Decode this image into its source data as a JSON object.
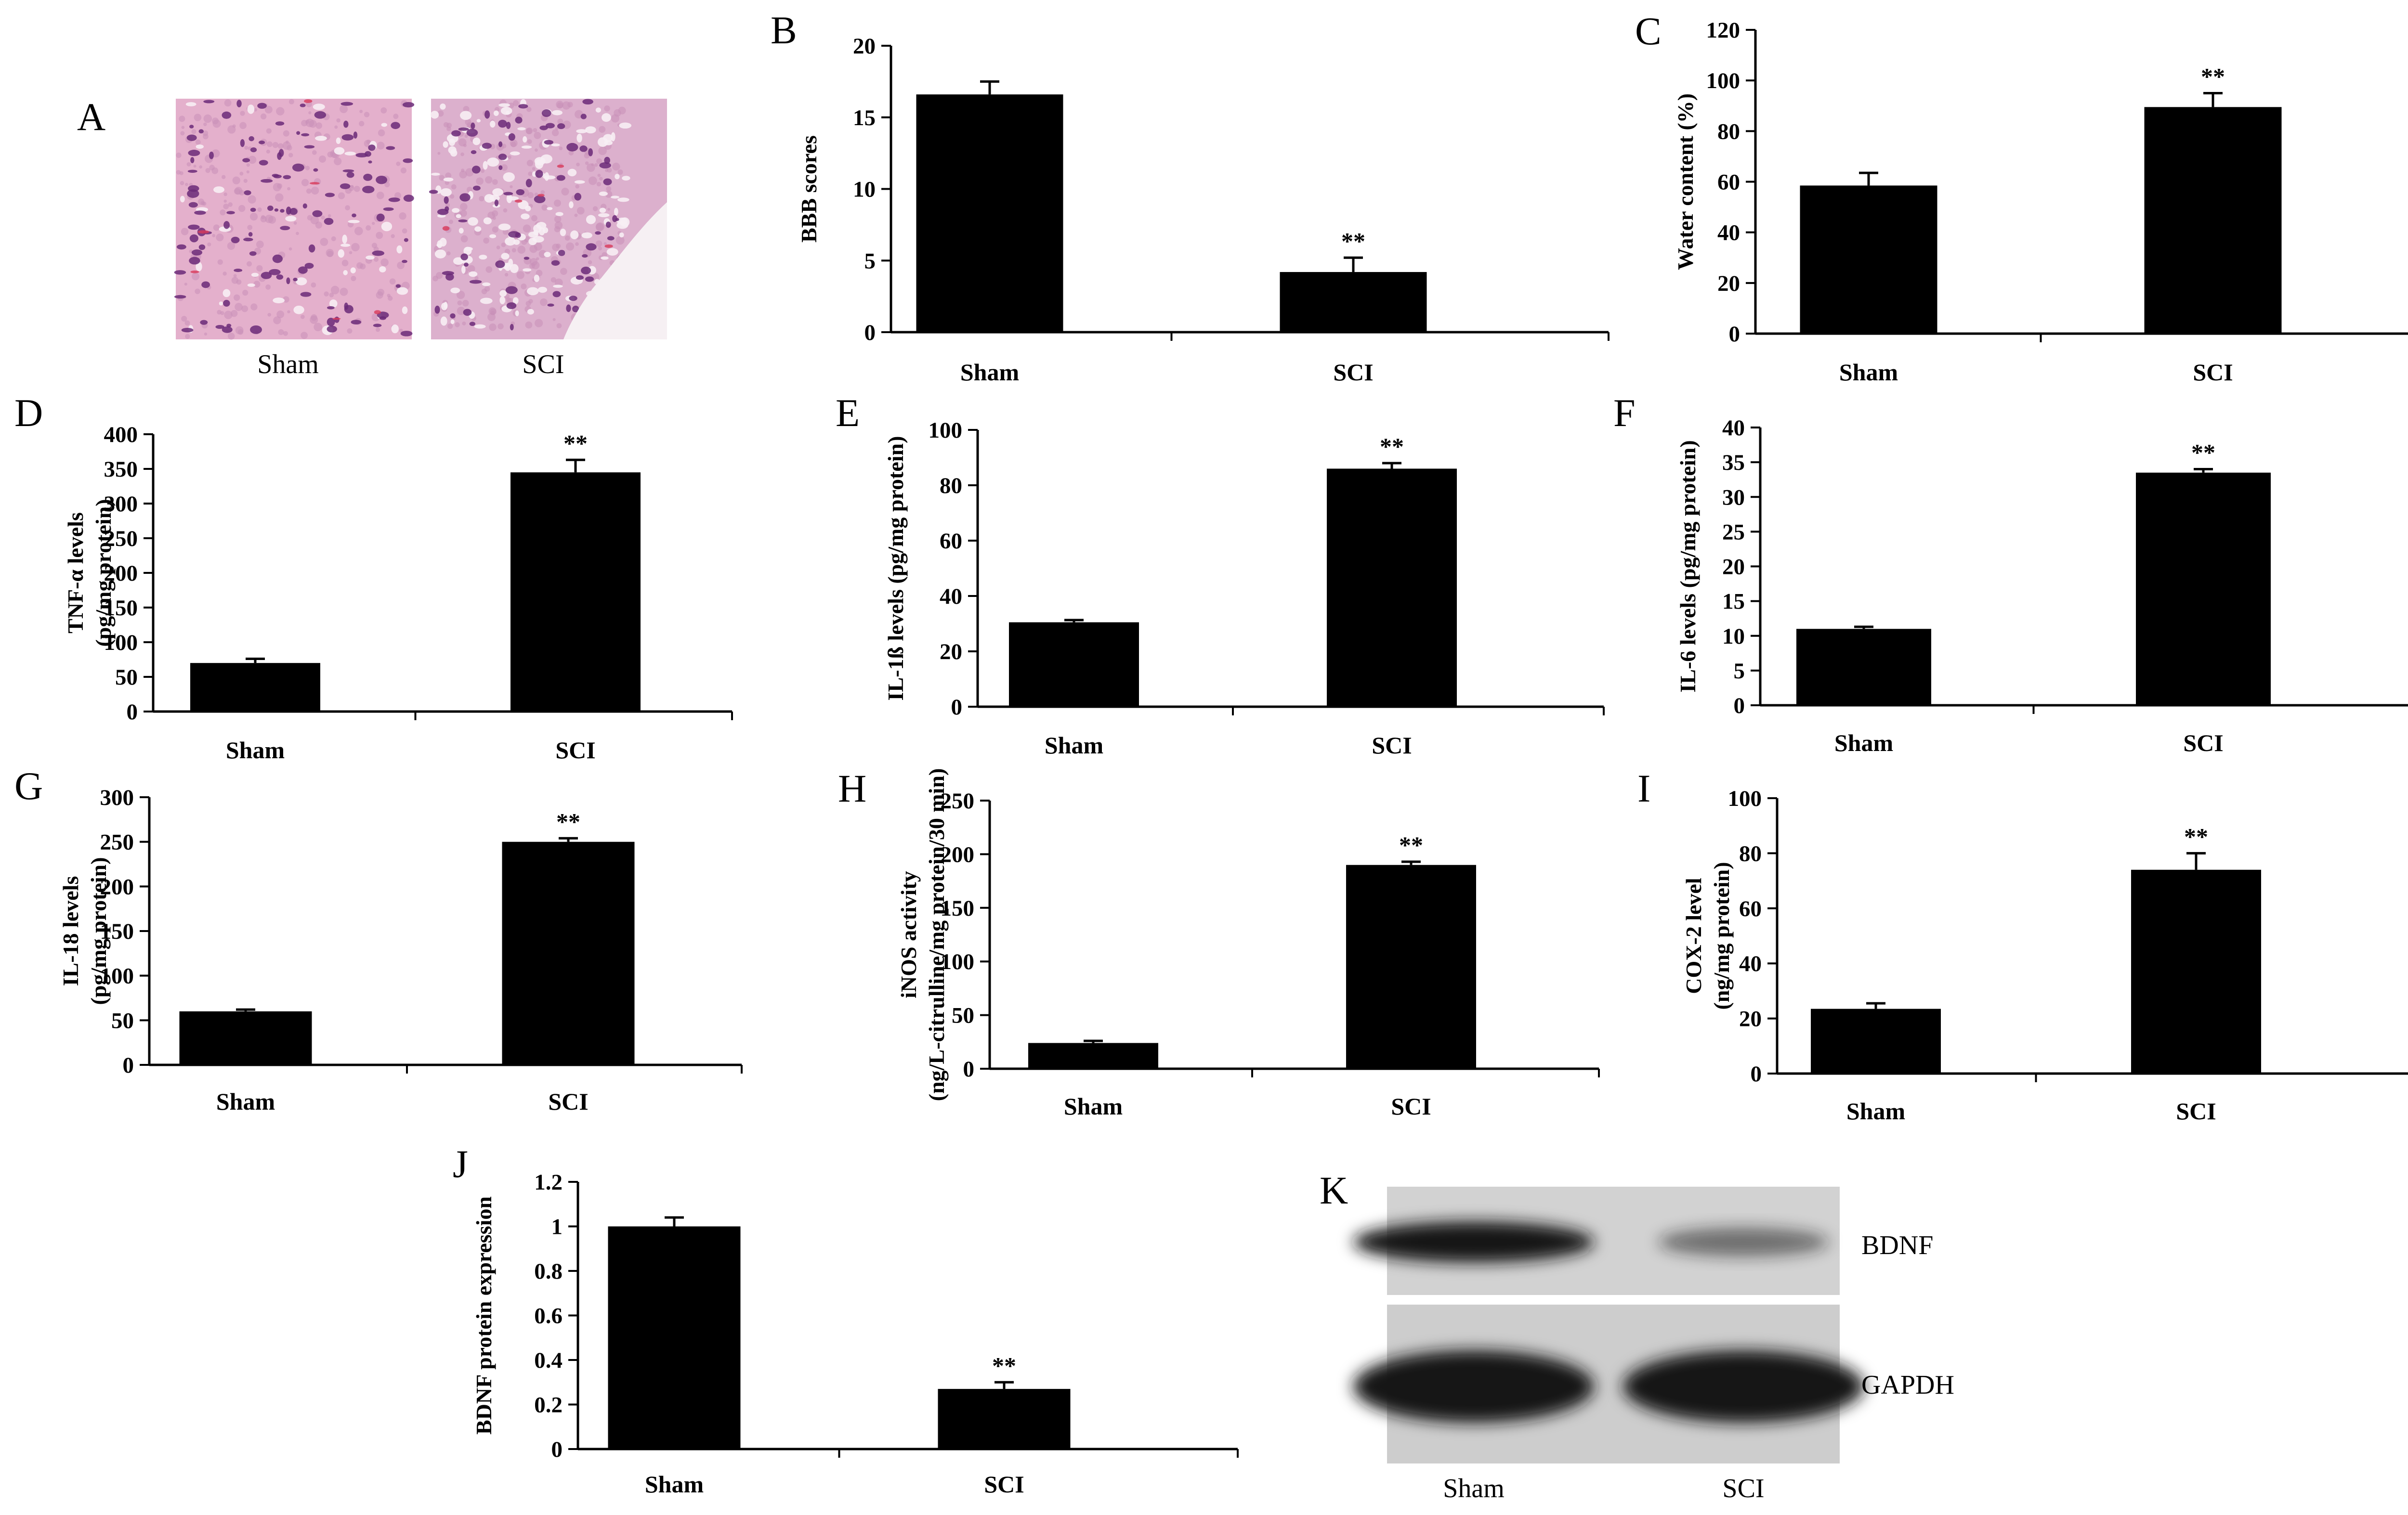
{
  "panel_letters": [
    "A",
    "B",
    "C",
    "D",
    "E",
    "F",
    "G",
    "H",
    "I",
    "J",
    "K"
  ],
  "histology": {
    "labels": [
      "Sham",
      "SCI"
    ],
    "colors": {
      "stain_background": "#e6b3d0",
      "nuclei": "#6b2a78",
      "vessel": "#d83a5a",
      "tissue_free": "#f5eef2"
    }
  },
  "western_blot": {
    "bands": [
      "BDNF",
      "GAPDH"
    ],
    "lanes": [
      "Sham",
      "SCI"
    ],
    "band_intensity": {
      "BDNF": [
        1.0,
        0.27
      ],
      "GAPDH": [
        1.0,
        1.0
      ]
    },
    "colors": {
      "membrane": "#d0d0d0",
      "band": "#141414"
    }
  },
  "chart_data": [
    {
      "panel": "B",
      "type": "bar",
      "categories": [
        "Sham",
        "SCI"
      ],
      "values": [
        16.6,
        4.2
      ],
      "errors": [
        0.9,
        1.0
      ],
      "significance": [
        "",
        "**"
      ],
      "ylabel": "BBB scores",
      "ylabel_lines": [
        "BBB scores"
      ],
      "ylim": [
        0,
        20
      ],
      "yticks": [
        "0",
        "5",
        "10",
        "15",
        "20"
      ]
    },
    {
      "panel": "C",
      "type": "bar",
      "categories": [
        "Sham",
        "SCI"
      ],
      "values": [
        58.5,
        89.5
      ],
      "errors": [
        5.0,
        5.5
      ],
      "significance": [
        "",
        "**"
      ],
      "ylabel": "Water content (%)",
      "ylabel_lines": [
        "Water content (%)"
      ],
      "ylim": [
        0,
        120
      ],
      "yticks": [
        "0",
        "20",
        "40",
        "60",
        "80",
        "100",
        "120"
      ]
    },
    {
      "panel": "D",
      "type": "bar",
      "categories": [
        "Sham",
        "SCI"
      ],
      "values": [
        70,
        345
      ],
      "errors": [
        6,
        18
      ],
      "significance": [
        "",
        "**"
      ],
      "ylabel": "TNF-α levels (pg/mg protein)",
      "ylabel_lines": [
        "TNF-α levels",
        "(pg/mg protein)"
      ],
      "ylim": [
        0,
        400
      ],
      "yticks": [
        "0",
        "50",
        "100",
        "150",
        "200",
        "250",
        "300",
        "350",
        "400"
      ]
    },
    {
      "panel": "E",
      "type": "bar",
      "categories": [
        "Sham",
        "SCI"
      ],
      "values": [
        30.5,
        86
      ],
      "errors": [
        0.8,
        2.0
      ],
      "significance": [
        "",
        "**"
      ],
      "ylabel": "IL-1ß levels (pg/mg protein)",
      "ylabel_lines": [
        "IL-1ß levels (pg/mg protein)"
      ],
      "ylim": [
        0,
        100
      ],
      "yticks": [
        "0",
        "20",
        "40",
        "60",
        "80",
        "100"
      ]
    },
    {
      "panel": "F",
      "type": "bar",
      "categories": [
        "Sham",
        "SCI"
      ],
      "values": [
        11,
        33.5
      ],
      "errors": [
        0.3,
        0.5
      ],
      "significance": [
        "",
        "**"
      ],
      "ylabel": "IL-6 levels (pg/mg protein)",
      "ylabel_lines": [
        "IL-6 levels (pg/mg protein)"
      ],
      "ylim": [
        0,
        40
      ],
      "yticks": [
        "0",
        "5",
        "10",
        "15",
        "20",
        "25",
        "30",
        "35",
        "40"
      ]
    },
    {
      "panel": "G",
      "type": "bar",
      "categories": [
        "Sham",
        "SCI"
      ],
      "values": [
        60,
        250
      ],
      "errors": [
        2,
        4
      ],
      "significance": [
        "",
        "**"
      ],
      "ylabel": "IL-18 levels (pg/mg protein)",
      "ylabel_lines": [
        "IL-18 levels",
        "(pg/mg protein)"
      ],
      "ylim": [
        0,
        300
      ],
      "yticks": [
        "0",
        "50",
        "100",
        "150",
        "200",
        "250",
        "300"
      ]
    },
    {
      "panel": "H",
      "type": "bar",
      "categories": [
        "Sham",
        "SCI"
      ],
      "values": [
        24,
        190
      ],
      "errors": [
        2,
        3
      ],
      "significance": [
        "",
        "**"
      ],
      "ylabel": "iNOS activity (ng/L-citrulline/mg protein/30 min)",
      "ylabel_lines": [
        "iNOS activity",
        "(ng/L-citrulline/mg  protein/30 min)"
      ],
      "ylim": [
        0,
        250
      ],
      "yticks": [
        "0",
        "50",
        "100",
        "150",
        "200",
        "250"
      ]
    },
    {
      "panel": "I",
      "type": "bar",
      "categories": [
        "Sham",
        "SCI"
      ],
      "values": [
        23.5,
        74
      ],
      "errors": [
        2.0,
        6.0
      ],
      "significance": [
        "",
        "**"
      ],
      "ylabel": "COX-2 level (ng/mg protein)",
      "ylabel_lines": [
        "COX-2 level",
        "(ng/mg protein)"
      ],
      "ylim": [
        0,
        100
      ],
      "yticks": [
        "0",
        "20",
        "40",
        "60",
        "80",
        "100"
      ]
    },
    {
      "panel": "J",
      "type": "bar",
      "categories": [
        "Sham",
        "SCI"
      ],
      "values": [
        1.0,
        0.27
      ],
      "errors": [
        0.04,
        0.03
      ],
      "significance": [
        "",
        "**"
      ],
      "ylabel": "BDNF protein expression",
      "ylabel_lines": [
        "BDNF protein expression"
      ],
      "ylim": [
        0,
        1.2
      ],
      "yticks": [
        "0",
        "0.2",
        "0.4",
        "0.6",
        "0.8",
        "1",
        "1.2"
      ]
    }
  ]
}
